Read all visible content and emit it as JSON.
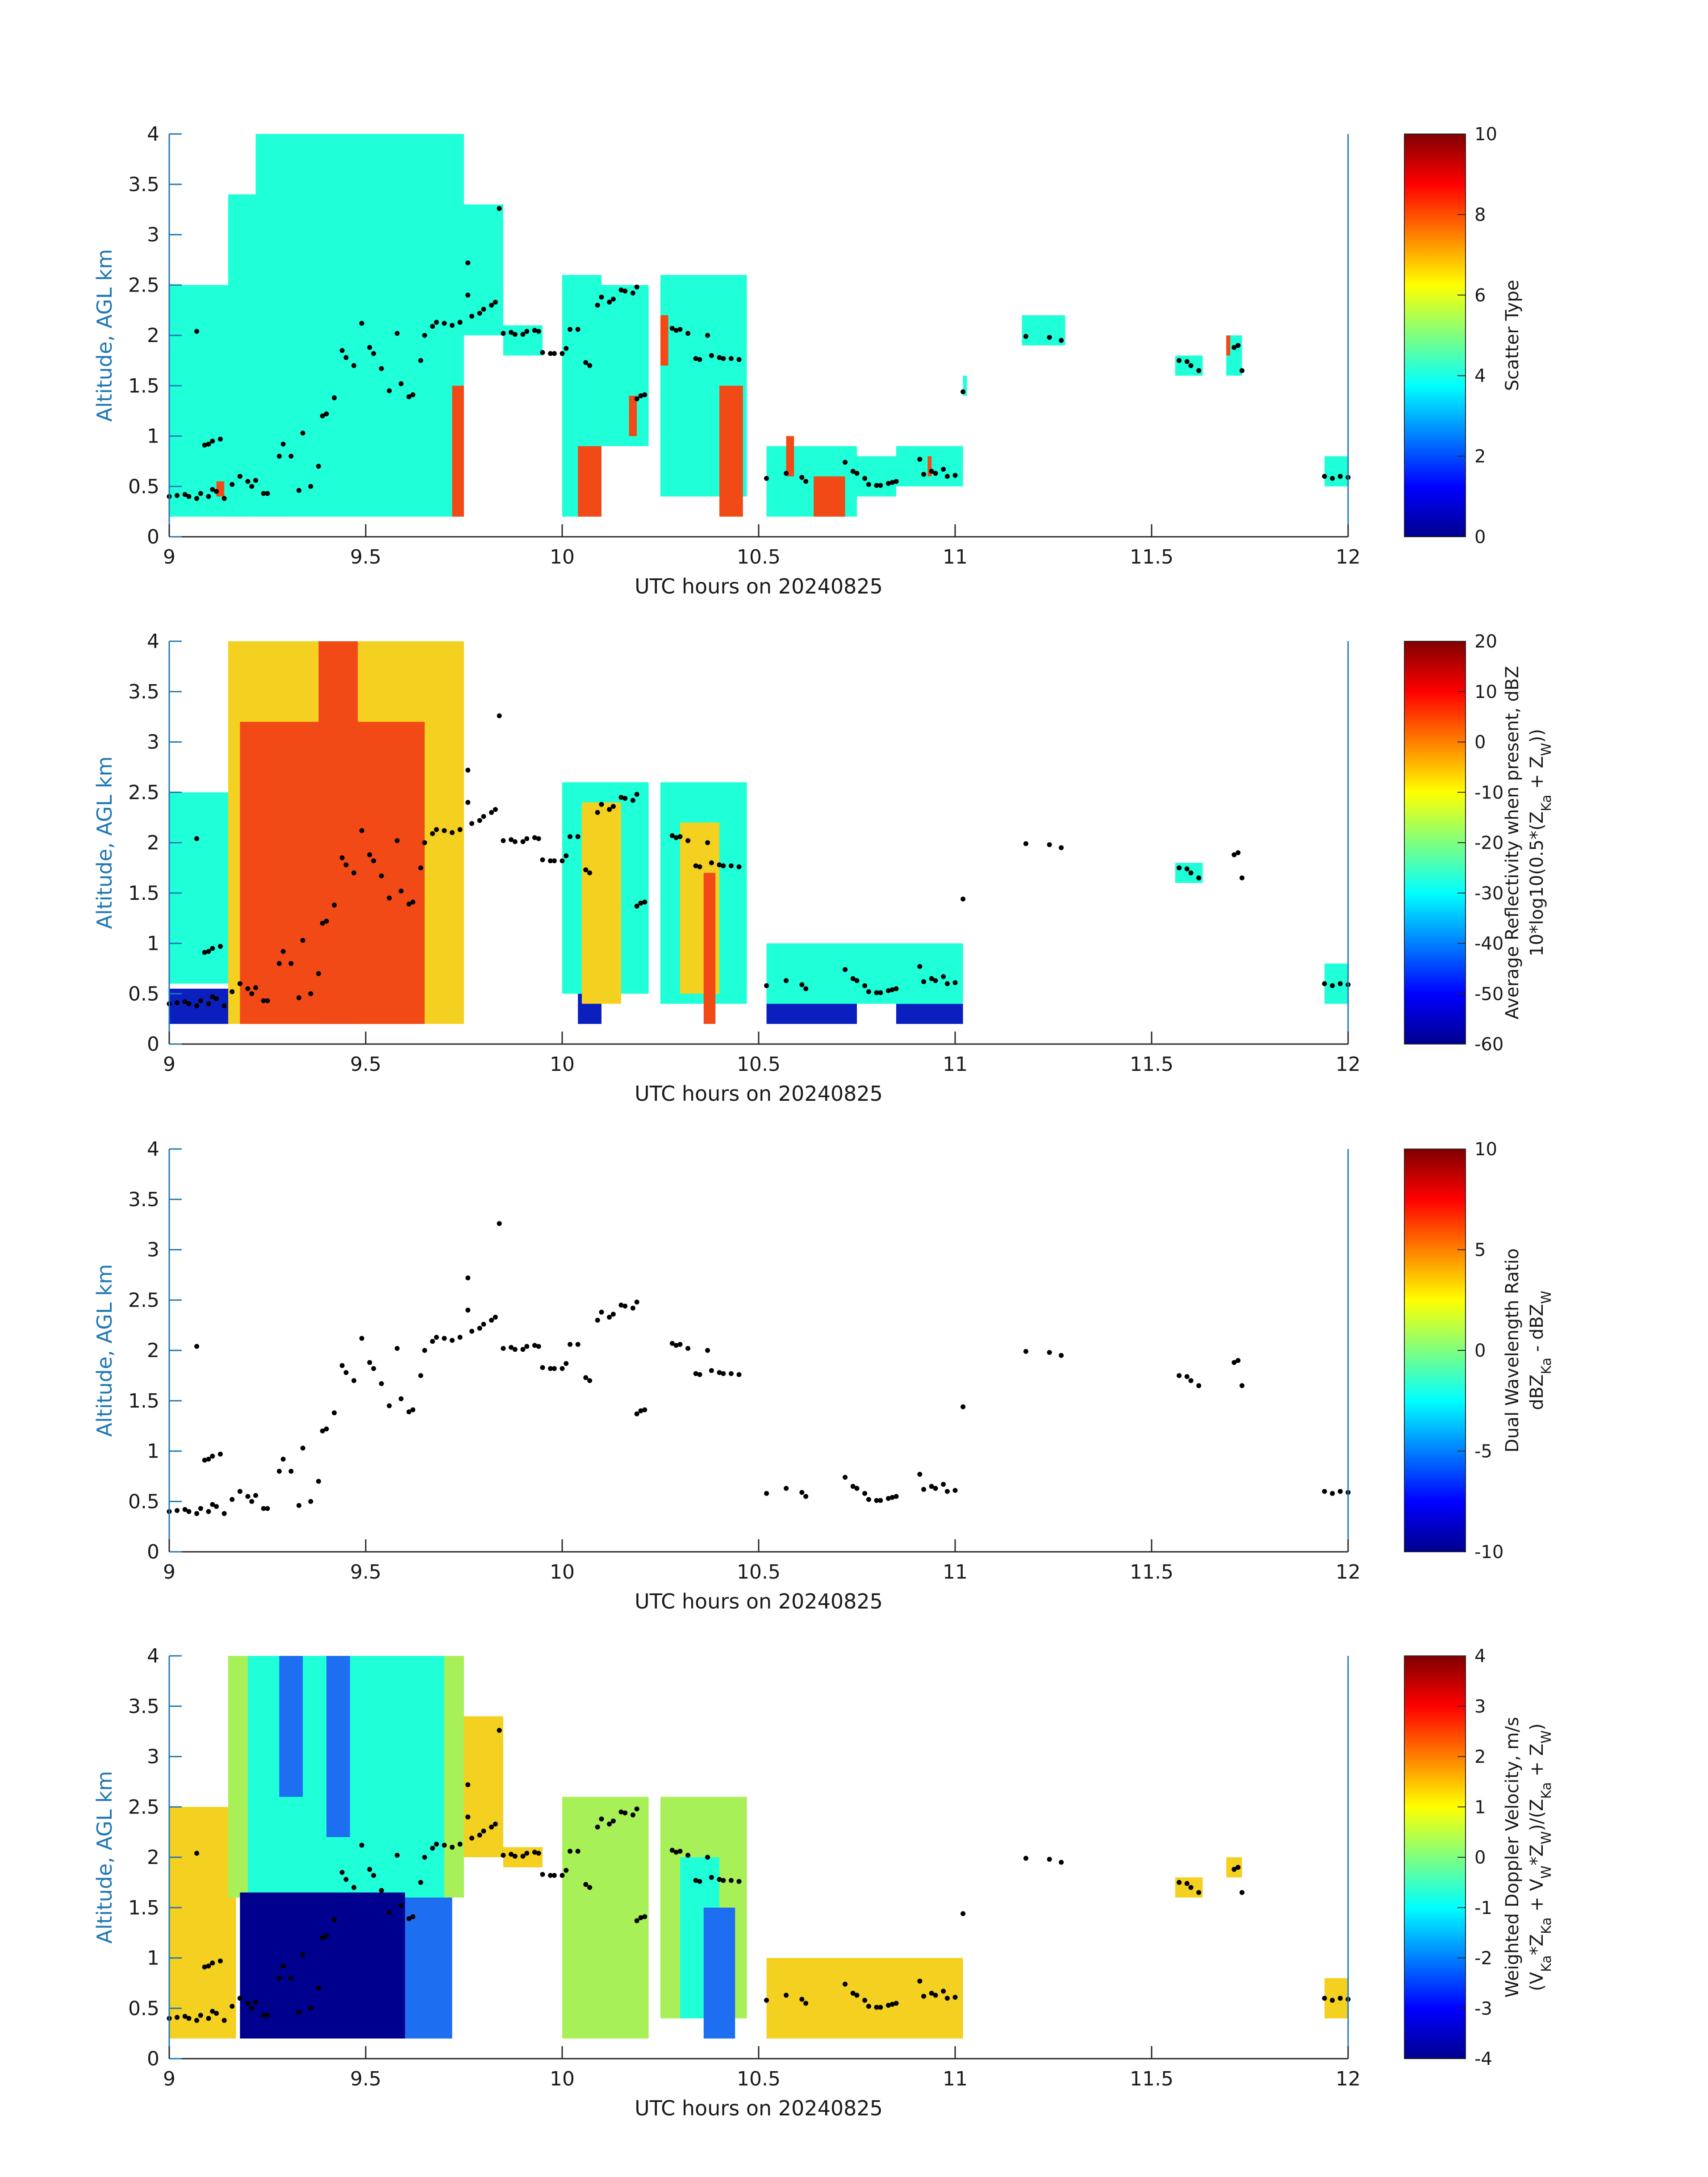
{
  "figure_xlabel": "UTC hours on 20240825",
  "chart_data": [
    {
      "type": "heatmap",
      "ylabel": "Altitude, AGL km",
      "xlabel": "UTC hours on 20240825",
      "xlim": [
        9,
        12
      ],
      "ylim": [
        0,
        4
      ],
      "xticks": [
        "9",
        "9.5",
        "10",
        "10.5",
        "11",
        "11.5",
        "12"
      ],
      "yticks": [
        "0",
        "0.5",
        "1",
        "1.5",
        "2",
        "2.5",
        "3",
        "3.5",
        "4"
      ],
      "colorbar": {
        "label": "Scatter Type",
        "sublabel": "",
        "range": [
          0,
          10
        ],
        "ticks": [
          "0",
          "2",
          "4",
          "6",
          "8",
          "10"
        ]
      },
      "fields": [
        {
          "field": "cyan",
          "value": 4,
          "regions": [
            [
              9.0,
              9.2,
              0.2,
              2.5
            ],
            [
              9.15,
              9.3,
              0.2,
              3.4
            ],
            [
              9.22,
              9.55,
              0.2,
              4.0
            ],
            [
              9.55,
              9.75,
              0.2,
              4.0
            ],
            [
              9.75,
              9.85,
              2.0,
              3.3
            ],
            [
              9.85,
              9.95,
              1.8,
              2.1
            ],
            [
              10.0,
              10.1,
              0.2,
              2.6
            ],
            [
              10.1,
              10.22,
              0.9,
              2.5
            ],
            [
              10.25,
              10.47,
              0.4,
              2.6
            ],
            [
              10.52,
              10.75,
              0.2,
              0.9
            ],
            [
              10.75,
              10.85,
              0.4,
              0.8
            ],
            [
              10.85,
              11.02,
              0.5,
              0.9
            ],
            [
              11.02,
              11.03,
              1.4,
              1.6
            ],
            [
              11.17,
              11.28,
              1.9,
              2.2
            ],
            [
              11.56,
              11.63,
              1.6,
              1.8
            ],
            [
              11.69,
              11.73,
              1.6,
              2.0
            ],
            [
              11.94,
              12.0,
              0.5,
              0.8
            ]
          ]
        },
        {
          "field": "red",
          "value": 9,
          "regions": [
            [
              9.12,
              9.14,
              0.4,
              0.55
            ],
            [
              9.72,
              9.75,
              0.2,
              1.5
            ],
            [
              10.04,
              10.1,
              0.2,
              0.9
            ],
            [
              10.17,
              10.19,
              1.0,
              1.4
            ],
            [
              10.25,
              10.27,
              1.7,
              2.2
            ],
            [
              10.4,
              10.46,
              0.2,
              1.5
            ],
            [
              10.57,
              10.59,
              0.6,
              1.0
            ],
            [
              10.64,
              10.72,
              0.2,
              0.6
            ],
            [
              10.93,
              10.94,
              0.6,
              0.8
            ],
            [
              11.69,
              11.7,
              1.8,
              2.0
            ]
          ]
        }
      ]
    },
    {
      "type": "heatmap",
      "ylabel": "Altitude, AGL km",
      "xlabel": "UTC hours on 20240825",
      "xlim": [
        9,
        12
      ],
      "ylim": [
        0,
        4
      ],
      "xticks": [
        "9",
        "9.5",
        "10",
        "10.5",
        "11",
        "11.5",
        "12"
      ],
      "yticks": [
        "0",
        "0.5",
        "1",
        "1.5",
        "2",
        "2.5",
        "3",
        "3.5",
        "4"
      ],
      "colorbar": {
        "label": "Average Reflectivity when present, dBZ",
        "sublabel": "10*log10(0.5*(Z_Ka + Z_W))",
        "range": [
          -60,
          20
        ],
        "ticks": [
          "-60",
          "-50",
          "-40",
          "-30",
          "-20",
          "-10",
          "0",
          "10",
          "20"
        ]
      },
      "fields": [
        {
          "field": "low",
          "value": -55,
          "regions": [
            [
              9.0,
              9.15,
              0.2,
              0.55
            ],
            [
              10.04,
              10.1,
              0.2,
              0.5
            ],
            [
              10.52,
              10.75,
              0.2,
              0.5
            ],
            [
              10.85,
              11.02,
              0.2,
              0.4
            ]
          ]
        },
        {
          "field": "cyan",
          "value": -35,
          "regions": [
            [
              9.0,
              9.15,
              0.6,
              2.5
            ],
            [
              10.0,
              10.22,
              0.5,
              2.6
            ],
            [
              10.25,
              10.47,
              0.4,
              2.6
            ],
            [
              10.52,
              11.02,
              0.4,
              1.0
            ],
            [
              11.56,
              11.63,
              1.6,
              1.8
            ],
            [
              11.94,
              12.0,
              0.4,
              0.8
            ]
          ]
        },
        {
          "field": "yellow",
          "value": -15,
          "regions": [
            [
              9.15,
              9.75,
              0.2,
              4.0
            ],
            [
              10.05,
              10.15,
              0.4,
              2.4
            ],
            [
              10.3,
              10.4,
              0.5,
              2.2
            ]
          ]
        },
        {
          "field": "red",
          "value": 10,
          "regions": [
            [
              9.18,
              9.65,
              0.2,
              3.2
            ],
            [
              9.38,
              9.48,
              0.2,
              4.0
            ],
            [
              10.36,
              10.39,
              0.2,
              1.7
            ]
          ]
        }
      ]
    },
    {
      "type": "scatter",
      "ylabel": "Altitude, AGL km",
      "xlabel": "UTC hours on 20240825",
      "xlim": [
        9,
        12
      ],
      "ylim": [
        0,
        4
      ],
      "xticks": [
        "9",
        "9.5",
        "10",
        "10.5",
        "11",
        "11.5",
        "12"
      ],
      "yticks": [
        "0",
        "0.5",
        "1",
        "1.5",
        "2",
        "2.5",
        "3",
        "3.5",
        "4"
      ],
      "colorbar": {
        "label": "Dual Wavelength Ratio",
        "sublabel": "dBZ_Ka - dBZ_W",
        "range": [
          -10,
          10
        ],
        "ticks": [
          "-10",
          "-5",
          "0",
          "5",
          "10"
        ]
      },
      "fields": []
    },
    {
      "type": "heatmap",
      "ylabel": "Altitude, AGL km",
      "xlabel": "UTC hours on 20240825",
      "xlim": [
        9,
        12
      ],
      "ylim": [
        0,
        4
      ],
      "xticks": [
        "9",
        "9.5",
        "10",
        "10.5",
        "11",
        "11.5",
        "12"
      ],
      "yticks": [
        "0",
        "0.5",
        "1",
        "1.5",
        "2",
        "2.5",
        "3",
        "3.5",
        "4"
      ],
      "colorbar": {
        "label": "Weighted Doppler Velocity, m/s",
        "sublabel": "(V_Ka*Z_Ka + V_W*Z_W)/(Z_Ka + Z_W)",
        "range": [
          -4,
          4
        ],
        "ticks": [
          "-4",
          "-3",
          "-2",
          "-1",
          "0",
          "1",
          "2",
          "3",
          "4"
        ]
      },
      "fields": [
        {
          "field": "yellow",
          "value": 0.8,
          "regions": [
            [
              9.0,
              9.17,
              0.2,
              2.5
            ],
            [
              9.75,
              9.85,
              2.0,
              3.4
            ],
            [
              9.85,
              9.95,
              1.9,
              2.1
            ],
            [
              10.52,
              11.02,
              0.2,
              1.0
            ],
            [
              11.56,
              11.63,
              1.6,
              1.8
            ],
            [
              11.69,
              11.73,
              1.8,
              2.0
            ],
            [
              11.94,
              12.0,
              0.4,
              0.8
            ]
          ]
        },
        {
          "field": "green",
          "value": 0.0,
          "regions": [
            [
              9.15,
              9.75,
              1.6,
              4.0
            ],
            [
              10.0,
              10.22,
              0.2,
              2.6
            ],
            [
              10.25,
              10.47,
              0.4,
              2.6
            ]
          ]
        },
        {
          "field": "cyan",
          "value": -1.2,
          "regions": [
            [
              9.2,
              9.7,
              1.6,
              4.0
            ],
            [
              10.3,
              10.4,
              0.4,
              2.0
            ]
          ]
        },
        {
          "field": "blue",
          "value": -2.5,
          "regions": [
            [
              9.28,
              9.34,
              2.6,
              4.0
            ],
            [
              9.4,
              9.46,
              2.2,
              4.0
            ],
            [
              9.55,
              9.72,
              0.2,
              1.6
            ],
            [
              10.36,
              10.44,
              0.2,
              1.5
            ]
          ]
        },
        {
          "field": "darkblue",
          "value": -4.0,
          "regions": [
            [
              9.18,
              9.6,
              0.2,
              1.65
            ]
          ]
        }
      ]
    }
  ],
  "dots": [
    [
      9.0,
      0.4
    ],
    [
      9.02,
      0.41
    ],
    [
      9.04,
      0.42
    ],
    [
      9.05,
      0.4
    ],
    [
      9.07,
      0.38
    ],
    [
      9.08,
      0.43
    ],
    [
      9.1,
      0.4
    ],
    [
      9.11,
      0.47
    ],
    [
      9.12,
      0.45
    ],
    [
      9.07,
      2.04
    ],
    [
      9.09,
      0.91
    ],
    [
      9.1,
      0.92
    ],
    [
      9.11,
      0.95
    ],
    [
      9.13,
      0.97
    ],
    [
      9.14,
      0.38
    ],
    [
      9.16,
      0.52
    ],
    [
      9.18,
      0.6
    ],
    [
      9.2,
      0.55
    ],
    [
      9.21,
      0.5
    ],
    [
      9.22,
      0.56
    ],
    [
      9.24,
      0.43
    ],
    [
      9.25,
      0.43
    ],
    [
      9.28,
      0.8
    ],
    [
      9.29,
      0.92
    ],
    [
      9.31,
      0.8
    ],
    [
      9.33,
      0.46
    ],
    [
      9.34,
      1.03
    ],
    [
      9.36,
      0.5
    ],
    [
      9.38,
      0.7
    ],
    [
      9.39,
      1.2
    ],
    [
      9.4,
      1.22
    ],
    [
      9.42,
      1.38
    ],
    [
      9.44,
      1.85
    ],
    [
      9.45,
      1.78
    ],
    [
      9.47,
      1.7
    ],
    [
      9.49,
      2.12
    ],
    [
      9.51,
      1.88
    ],
    [
      9.52,
      1.82
    ],
    [
      9.54,
      1.67
    ],
    [
      9.56,
      1.45
    ],
    [
      9.58,
      2.02
    ],
    [
      9.59,
      1.52
    ],
    [
      9.61,
      1.39
    ],
    [
      9.62,
      1.41
    ],
    [
      9.64,
      1.75
    ],
    [
      9.65,
      2.0
    ],
    [
      9.67,
      2.09
    ],
    [
      9.68,
      2.13
    ],
    [
      9.7,
      2.12
    ],
    [
      9.72,
      2.1
    ],
    [
      9.74,
      2.13
    ],
    [
      9.76,
      2.4
    ],
    [
      9.76,
      2.72
    ],
    [
      9.77,
      2.19
    ],
    [
      9.79,
      2.22
    ],
    [
      9.8,
      2.26
    ],
    [
      9.82,
      2.3
    ],
    [
      9.83,
      2.33
    ],
    [
      9.84,
      3.26
    ],
    [
      9.85,
      2.02
    ],
    [
      9.87,
      2.03
    ],
    [
      9.88,
      2.01
    ],
    [
      9.9,
      2.01
    ],
    [
      9.91,
      2.04
    ],
    [
      9.93,
      2.05
    ],
    [
      9.94,
      2.04
    ],
    [
      9.95,
      1.83
    ],
    [
      9.97,
      1.82
    ],
    [
      9.98,
      1.82
    ],
    [
      10.0,
      1.82
    ],
    [
      10.01,
      1.87
    ],
    [
      10.02,
      2.06
    ],
    [
      10.04,
      2.06
    ],
    [
      10.06,
      1.73
    ],
    [
      10.07,
      1.7
    ],
    [
      10.09,
      2.3
    ],
    [
      10.1,
      2.38
    ],
    [
      10.12,
      2.33
    ],
    [
      10.13,
      2.36
    ],
    [
      10.15,
      2.45
    ],
    [
      10.16,
      2.44
    ],
    [
      10.19,
      2.48
    ],
    [
      10.18,
      2.42
    ],
    [
      10.19,
      1.37
    ],
    [
      10.2,
      1.4
    ],
    [
      10.21,
      1.41
    ],
    [
      10.28,
      2.07
    ],
    [
      10.29,
      2.05
    ],
    [
      10.3,
      2.06
    ],
    [
      10.32,
      2.02
    ],
    [
      10.34,
      1.77
    ],
    [
      10.35,
      1.76
    ],
    [
      10.37,
      2.0
    ],
    [
      10.38,
      1.8
    ],
    [
      10.4,
      1.78
    ],
    [
      10.41,
      1.77
    ],
    [
      10.43,
      1.77
    ],
    [
      10.45,
      1.76
    ],
    [
      10.52,
      0.58
    ],
    [
      10.57,
      0.63
    ],
    [
      10.61,
      0.59
    ],
    [
      10.62,
      0.55
    ],
    [
      10.72,
      0.74
    ],
    [
      10.74,
      0.65
    ],
    [
      10.75,
      0.63
    ],
    [
      10.77,
      0.58
    ],
    [
      10.78,
      0.52
    ],
    [
      10.8,
      0.51
    ],
    [
      10.81,
      0.51
    ],
    [
      10.83,
      0.53
    ],
    [
      10.84,
      0.54
    ],
    [
      10.85,
      0.55
    ],
    [
      10.91,
      0.77
    ],
    [
      10.92,
      0.62
    ],
    [
      10.94,
      0.65
    ],
    [
      10.95,
      0.63
    ],
    [
      10.97,
      0.67
    ],
    [
      10.98,
      0.6
    ],
    [
      11.0,
      0.61
    ],
    [
      11.02,
      1.44
    ],
    [
      11.18,
      1.99
    ],
    [
      11.24,
      1.98
    ],
    [
      11.27,
      1.95
    ],
    [
      11.57,
      1.75
    ],
    [
      11.59,
      1.74
    ],
    [
      11.6,
      1.7
    ],
    [
      11.62,
      1.65
    ],
    [
      11.71,
      1.88
    ],
    [
      11.72,
      1.9
    ],
    [
      11.73,
      1.65
    ],
    [
      11.94,
      0.6
    ],
    [
      11.96,
      0.58
    ],
    [
      11.98,
      0.6
    ],
    [
      12.0,
      0.59
    ]
  ]
}
